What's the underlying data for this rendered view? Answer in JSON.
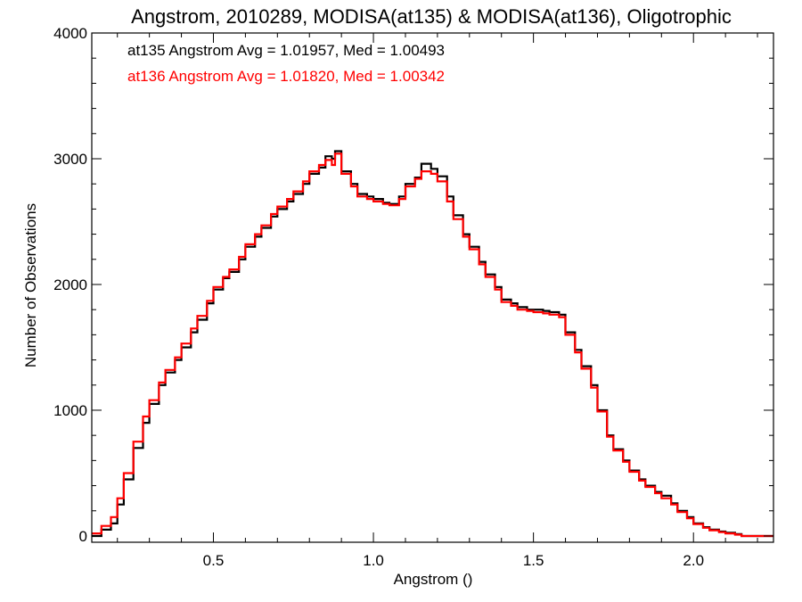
{
  "chart_data": {
    "type": "line",
    "title": "Angstrom, 2010289, MODISA(at135) & MODISA(at136), Oligotrophic",
    "xlabel": "Angstrom ()",
    "ylabel": "Number of Observations",
    "xlim": [
      0.12,
      2.25
    ],
    "ylim": [
      -50,
      4000
    ],
    "xticks": [
      0.5,
      1.0,
      1.5,
      2.0
    ],
    "xtick_labels": [
      "0.5",
      "1.0",
      "1.5",
      "2.0"
    ],
    "yticks": [
      0,
      1000,
      2000,
      3000,
      4000
    ],
    "ytick_labels": [
      "0",
      "1000",
      "2000",
      "3000",
      "4000"
    ],
    "step": true,
    "grid": false,
    "legend_position": "top-left",
    "annotations": [
      {
        "text": "at135 Angstrom Avg = 1.01957, Med = 1.00493",
        "color": "#000000"
      },
      {
        "text": "at136 Angstrom Avg = 1.01820, Med = 1.00342",
        "color": "#ff0000"
      }
    ],
    "series": [
      {
        "color": "#000000",
        "x": [
          0.12,
          0.15,
          0.18,
          0.2,
          0.22,
          0.25,
          0.28,
          0.3,
          0.33,
          0.35,
          0.38,
          0.4,
          0.43,
          0.45,
          0.48,
          0.5,
          0.53,
          0.55,
          0.58,
          0.6,
          0.63,
          0.65,
          0.68,
          0.7,
          0.73,
          0.75,
          0.78,
          0.8,
          0.83,
          0.85,
          0.87,
          0.88,
          0.9,
          0.93,
          0.95,
          0.98,
          1.0,
          1.03,
          1.05,
          1.08,
          1.1,
          1.13,
          1.15,
          1.18,
          1.2,
          1.23,
          1.25,
          1.28,
          1.3,
          1.33,
          1.35,
          1.38,
          1.4,
          1.43,
          1.45,
          1.48,
          1.5,
          1.53,
          1.55,
          1.58,
          1.6,
          1.63,
          1.65,
          1.68,
          1.7,
          1.73,
          1.75,
          1.78,
          1.8,
          1.83,
          1.85,
          1.88,
          1.9,
          1.93,
          1.95,
          1.98,
          2.0,
          2.03,
          2.05,
          2.08,
          2.1,
          2.13,
          2.15,
          2.25
        ],
        "y": [
          0,
          50,
          100,
          250,
          450,
          700,
          900,
          1050,
          1200,
          1300,
          1400,
          1500,
          1620,
          1720,
          1850,
          1960,
          2050,
          2100,
          2200,
          2300,
          2380,
          2450,
          2540,
          2600,
          2660,
          2720,
          2800,
          2880,
          2930,
          3020,
          3000,
          3060,
          2900,
          2800,
          2720,
          2700,
          2680,
          2650,
          2640,
          2700,
          2800,
          2850,
          2960,
          2920,
          2860,
          2700,
          2550,
          2400,
          2300,
          2180,
          2080,
          1980,
          1880,
          1850,
          1820,
          1800,
          1800,
          1790,
          1780,
          1760,
          1620,
          1480,
          1350,
          1200,
          1000,
          800,
          690,
          600,
          520,
          450,
          400,
          350,
          320,
          260,
          200,
          150,
          100,
          70,
          50,
          35,
          25,
          15,
          0,
          0
        ]
      },
      {
        "color": "#ff0000",
        "x": [
          0.12,
          0.15,
          0.18,
          0.2,
          0.22,
          0.25,
          0.28,
          0.3,
          0.33,
          0.35,
          0.38,
          0.4,
          0.43,
          0.45,
          0.48,
          0.5,
          0.53,
          0.55,
          0.58,
          0.6,
          0.63,
          0.65,
          0.68,
          0.7,
          0.73,
          0.75,
          0.78,
          0.8,
          0.83,
          0.85,
          0.87,
          0.88,
          0.9,
          0.93,
          0.95,
          0.98,
          1.0,
          1.03,
          1.05,
          1.08,
          1.1,
          1.13,
          1.15,
          1.18,
          1.2,
          1.23,
          1.25,
          1.28,
          1.3,
          1.33,
          1.35,
          1.38,
          1.4,
          1.43,
          1.45,
          1.48,
          1.5,
          1.53,
          1.55,
          1.58,
          1.6,
          1.63,
          1.65,
          1.68,
          1.7,
          1.73,
          1.75,
          1.78,
          1.8,
          1.83,
          1.85,
          1.88,
          1.9,
          1.93,
          1.95,
          1.98,
          2.0,
          2.03,
          2.05,
          2.08,
          2.1,
          2.13,
          2.15,
          2.25
        ],
        "y": [
          20,
          80,
          150,
          300,
          500,
          750,
          950,
          1080,
          1220,
          1320,
          1420,
          1530,
          1650,
          1750,
          1870,
          1980,
          2060,
          2120,
          2220,
          2320,
          2400,
          2470,
          2560,
          2620,
          2680,
          2740,
          2820,
          2900,
          2950,
          2990,
          2950,
          3040,
          2880,
          2780,
          2700,
          2680,
          2660,
          2640,
          2630,
          2680,
          2780,
          2840,
          2900,
          2880,
          2820,
          2660,
          2520,
          2380,
          2280,
          2160,
          2060,
          1960,
          1860,
          1830,
          1800,
          1790,
          1780,
          1770,
          1760,
          1740,
          1600,
          1460,
          1330,
          1180,
          990,
          790,
          680,
          590,
          510,
          440,
          390,
          340,
          300,
          250,
          190,
          140,
          95,
          65,
          45,
          30,
          20,
          10,
          0,
          0
        ]
      }
    ]
  }
}
